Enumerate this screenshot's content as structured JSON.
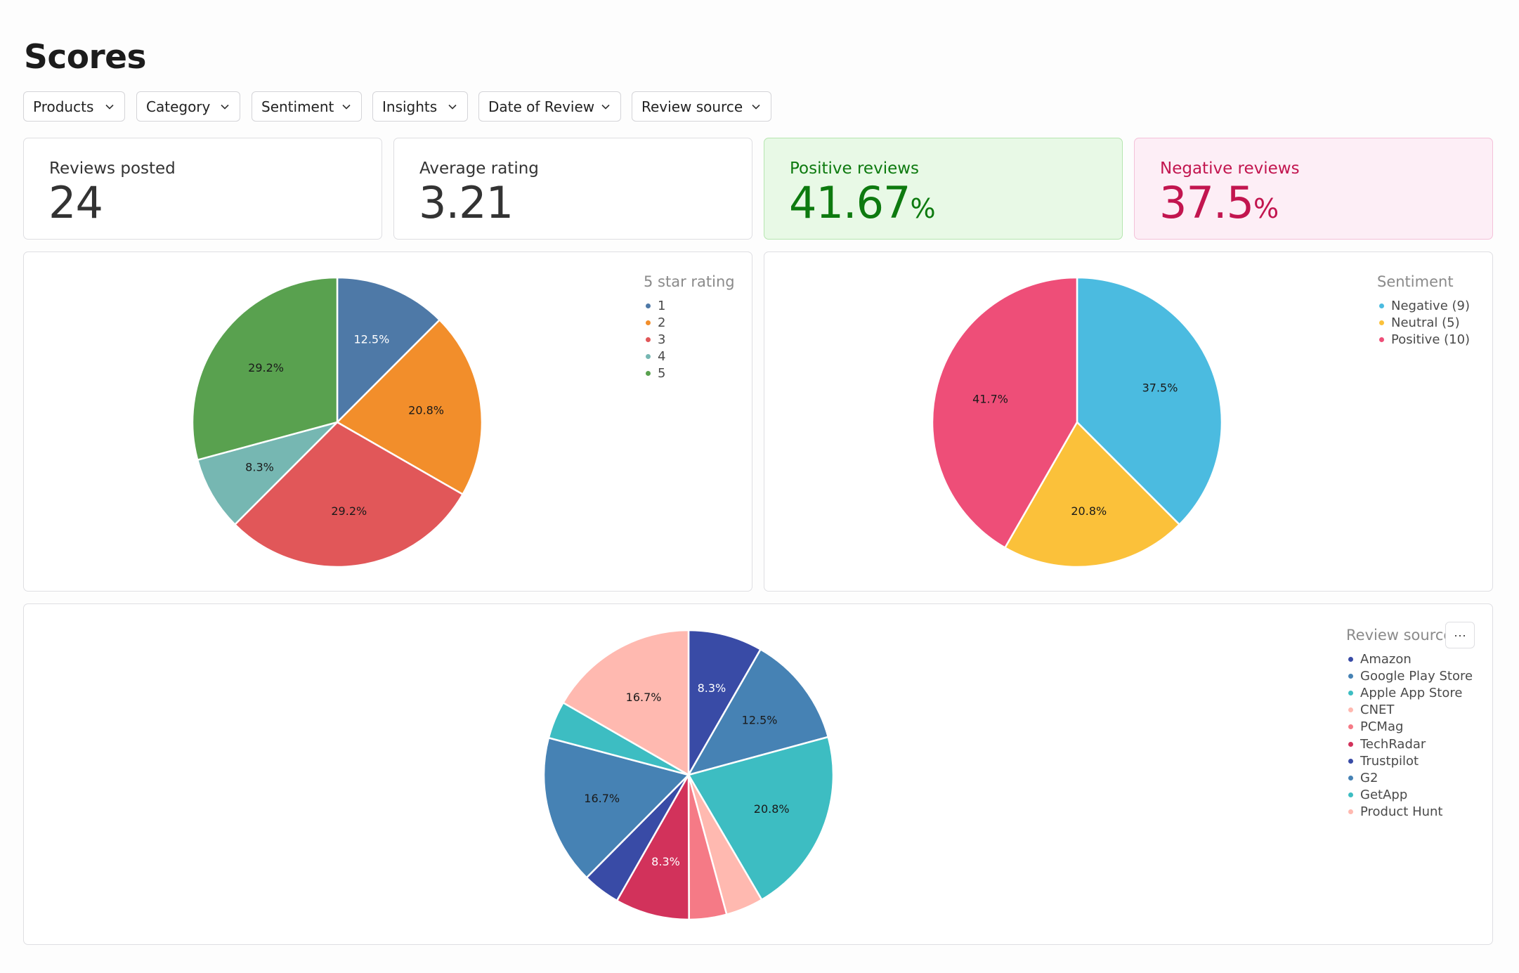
{
  "page": {
    "title": "Scores"
  },
  "filters": [
    {
      "label": "Products"
    },
    {
      "label": "Category"
    },
    {
      "label": "Sentiment"
    },
    {
      "label": "Insights"
    },
    {
      "label": "Date of Review"
    },
    {
      "label": "Review source"
    }
  ],
  "kpis": {
    "reviews_posted": {
      "label": "Reviews posted",
      "value": "24"
    },
    "average_rating": {
      "label": "Average rating",
      "value": "3.21"
    },
    "positive_reviews": {
      "label": "Positive reviews",
      "value": "41.67",
      "unit": "%"
    },
    "negative_reviews": {
      "label": "Negative reviews",
      "value": "37.5",
      "unit": "%"
    }
  },
  "more_button": {
    "label": "···"
  },
  "colors": {
    "positive_text": "#0d7a0f",
    "positive_bg": "#e8f9e6",
    "negative_text": "#c2154f",
    "negative_bg": "#fdeef6"
  },
  "chart_data": [
    {
      "id": "rating",
      "type": "pie",
      "legend_title": "5 star rating",
      "legend_position": "top-right",
      "start_angle_deg": 0,
      "slices": [
        {
          "label": "1",
          "value": 12.5,
          "display": "12.5%",
          "color": "#4e79a7",
          "label_color": "#ffffff"
        },
        {
          "label": "2",
          "value": 20.8,
          "display": "20.8%",
          "color": "#f28e2b",
          "label_color": "#1a1a1a"
        },
        {
          "label": "3",
          "value": 29.2,
          "display": "29.2%",
          "color": "#e15759",
          "label_color": "#1a1a1a"
        },
        {
          "label": "4",
          "value": 8.3,
          "display": "8.3%",
          "color": "#76b7b2",
          "label_color": "#1a1a1a"
        },
        {
          "label": "5",
          "value": 29.2,
          "display": "29.2%",
          "color": "#59a14f",
          "label_color": "#1a1a1a"
        }
      ]
    },
    {
      "id": "sentiment",
      "type": "pie",
      "legend_title": "Sentiment",
      "legend_position": "top-right",
      "start_angle_deg": 0,
      "slices": [
        {
          "label": "Negative (9)",
          "value": 37.5,
          "display": "37.5%",
          "color": "#4bbbe0",
          "label_color": "#1a1a1a"
        },
        {
          "label": "Neutral (5)",
          "value": 20.8,
          "display": "20.8%",
          "color": "#fbc13a",
          "label_color": "#1a1a1a"
        },
        {
          "label": "Positive (10)",
          "value": 41.7,
          "display": "41.7%",
          "color": "#ee4e78",
          "label_color": "#1a1a1a"
        }
      ]
    },
    {
      "id": "source",
      "type": "pie",
      "legend_title": "Review source",
      "legend_position": "top-right",
      "start_angle_deg": 0,
      "slices": [
        {
          "label": "Amazon",
          "value": 8.3,
          "display": "8.3%",
          "color": "#394ba6",
          "label_color": "#ffffff"
        },
        {
          "label": "Google Play Store",
          "value": 12.5,
          "display": "12.5%",
          "color": "#4682b4",
          "label_color": "#1a1a1a"
        },
        {
          "label": "Apple App Store",
          "value": 20.8,
          "display": "20.8%",
          "color": "#3dbdc2",
          "label_color": "#1a1a1a"
        },
        {
          "label": "CNET",
          "value": 4.2,
          "display": "",
          "color": "#ffb9b0",
          "label_color": "#1a1a1a"
        },
        {
          "label": "PCMag",
          "value": 4.2,
          "display": "",
          "color": "#f57a86",
          "label_color": "#1a1a1a"
        },
        {
          "label": "TechRadar",
          "value": 8.3,
          "display": "8.3%",
          "color": "#d2325b",
          "label_color": "#ffffff"
        },
        {
          "label": "Trustpilot",
          "value": 4.2,
          "display": "",
          "color": "#394ba6",
          "label_color": "#ffffff"
        },
        {
          "label": "G2",
          "value": 16.7,
          "display": "16.7%",
          "color": "#4682b4",
          "label_color": "#1a1a1a"
        },
        {
          "label": "GetApp",
          "value": 4.2,
          "display": "",
          "color": "#3dbdc2",
          "label_color": "#1a1a1a"
        },
        {
          "label": "Product Hunt",
          "value": 16.7,
          "display": "16.7%",
          "color": "#ffb9b0",
          "label_color": "#1a1a1a"
        }
      ]
    }
  ]
}
